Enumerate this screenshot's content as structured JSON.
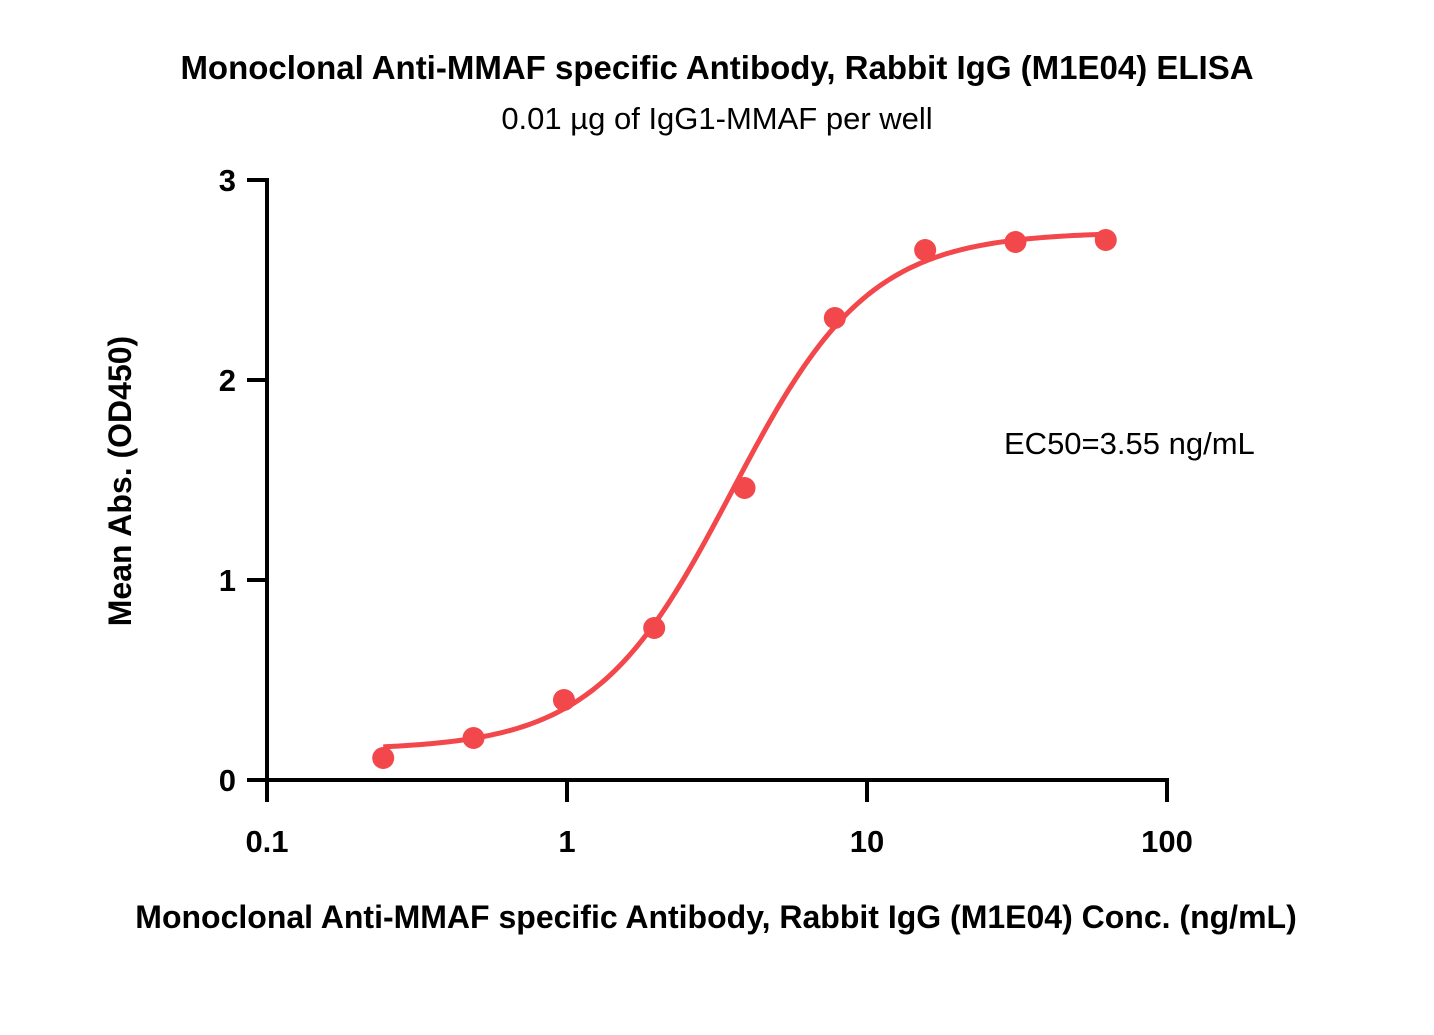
{
  "chart_data": {
    "type": "scatter",
    "title": "Monoclonal Anti-MMAF specific Antibody, Rabbit IgG (M1E04) ELISA",
    "subtitle": "0.01 µg of IgG1-MMAF per well",
    "xlabel": "Monoclonal Anti-MMAF specific Antibody, Rabbit IgG (M1E04) Conc. (ng/mL)",
    "ylabel": "Mean Abs. (OD450)",
    "x_scale": "log",
    "xlim": [
      0.1,
      100
    ],
    "ylim": [
      0,
      3
    ],
    "x_ticks": [
      0.1,
      1,
      10,
      100
    ],
    "x_tick_labels": [
      "0.1",
      "1",
      "10",
      "100"
    ],
    "y_ticks": [
      0,
      1,
      2,
      3
    ],
    "y_tick_labels": [
      "0",
      "1",
      "2",
      "3"
    ],
    "grid": false,
    "series": [
      {
        "color": "#f2474b",
        "x": [
          0.244,
          0.488,
          0.977,
          1.953,
          3.906,
          7.813,
          15.625,
          31.25,
          62.5
        ],
        "y": [
          0.11,
          0.21,
          0.4,
          0.76,
          1.46,
          2.31,
          2.65,
          2.69,
          2.7
        ]
      }
    ],
    "fit": {
      "model": "4PL",
      "bottom": 0.15,
      "top": 2.74,
      "ec50": 3.55,
      "hill": 1.9
    },
    "annotations": [
      "EC50=3.55 ng/mL"
    ]
  }
}
